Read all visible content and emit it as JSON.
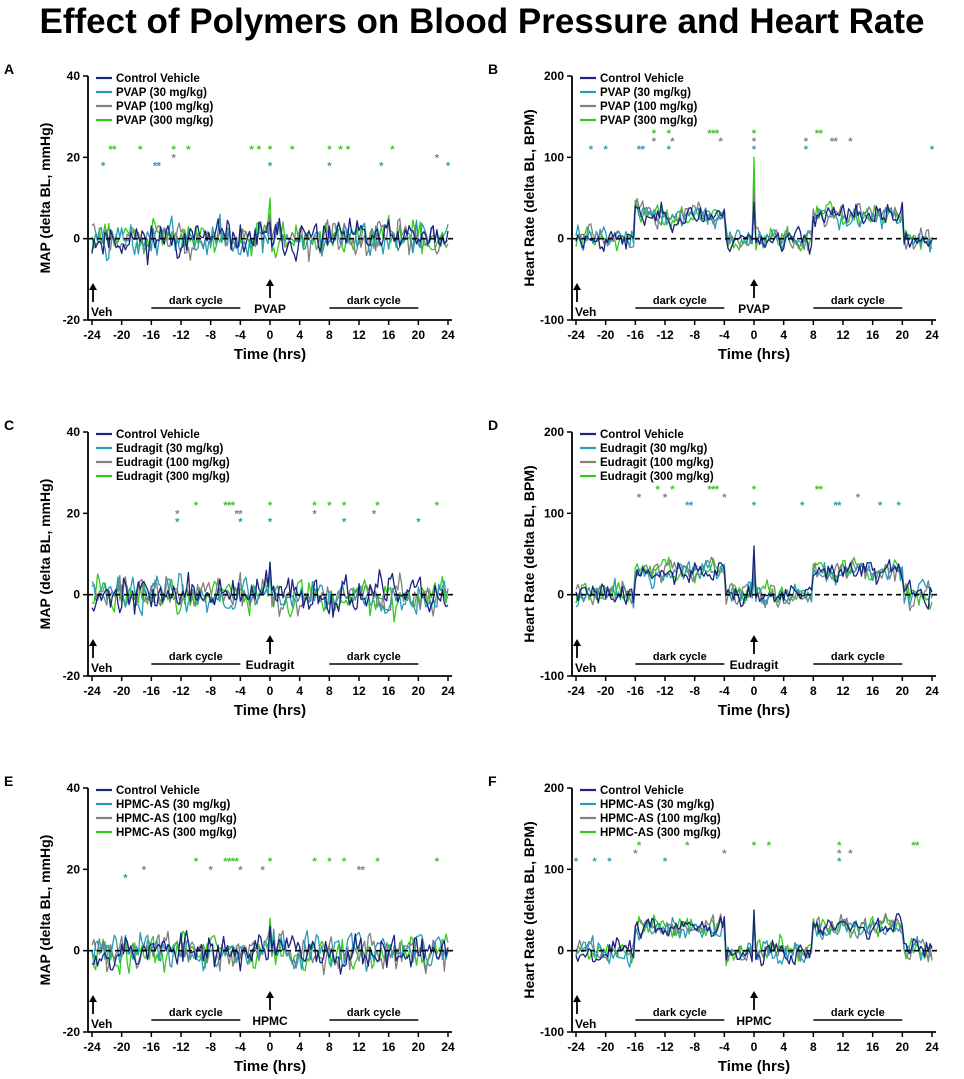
{
  "title": "Effect of Polymers on Blood Pressure and Heart Rate",
  "colors": {
    "control": "#1a237e",
    "low": "#2a9bb6",
    "mid": "#808080",
    "high": "#33cc1a"
  },
  "chart_data": [
    {
      "letter": "A",
      "type": "line",
      "measure": "MAP",
      "ylabel": "MAP (delta BL, mmHg)",
      "xlabel": "Time (hrs)",
      "ylim": [
        -20,
        40
      ],
      "yticks": [
        -20,
        0,
        20,
        40
      ],
      "xlim": [
        -24,
        24
      ],
      "xticks": [
        -24,
        -20,
        -16,
        -12,
        -8,
        -4,
        0,
        4,
        8,
        12,
        16,
        20,
        24
      ],
      "baseline": 0,
      "series": [
        {
          "name": "Control Vehicle",
          "color_key": "control"
        },
        {
          "name": "PVAP (30 mg/kg)",
          "color_key": "low"
        },
        {
          "name": "PVAP (100 mg/kg)",
          "color_key": "mid"
        },
        {
          "name": "PVAP (300 mg/kg)",
          "color_key": "high"
        }
      ],
      "trace_profile": {
        "night_shift": [
          0,
          0,
          0,
          0
        ],
        "spike_at_0": [
          4,
          4,
          6,
          10
        ],
        "noise": 5,
        "seed": 11
      },
      "veh_label": "Veh",
      "dose_label": "PVAP",
      "dark_label": "dark cycle",
      "dark_cycles": [
        [
          -16,
          -4
        ],
        [
          8,
          20
        ]
      ],
      "significance": [
        {
          "series": 1,
          "x": [
            -22.5,
            -15.5,
            -15,
            0,
            8,
            15,
            24
          ]
        },
        {
          "series": 2,
          "x": [
            -13,
            22.5
          ]
        },
        {
          "series": 3,
          "x": [
            -21.5,
            -21,
            -17.5,
            -13,
            -11,
            -2.5,
            -1.5,
            0,
            3,
            8,
            9.5,
            10.5,
            16.5
          ]
        }
      ],
      "sig_y": {
        "1": 18,
        "2": 20,
        "3": 22
      }
    },
    {
      "letter": "B",
      "type": "line",
      "measure": "HR",
      "ylabel": "Heart Rate (delta BL, BPM)",
      "xlabel": "Time (hrs)",
      "ylim": [
        -100,
        200
      ],
      "yticks": [
        -100,
        0,
        100,
        200
      ],
      "xlim": [
        -24,
        24
      ],
      "xticks": [
        -24,
        -20,
        -16,
        -12,
        -8,
        -4,
        0,
        4,
        8,
        12,
        16,
        20,
        24
      ],
      "baseline": 0,
      "series": [
        {
          "name": "Control Vehicle",
          "color_key": "control"
        },
        {
          "name": "PVAP (30 mg/kg)",
          "color_key": "low"
        },
        {
          "name": "PVAP (100 mg/kg)",
          "color_key": "mid"
        },
        {
          "name": "PVAP (300 mg/kg)",
          "color_key": "high"
        }
      ],
      "trace_profile": {
        "night_shift": [
          28,
          28,
          30,
          30
        ],
        "spike_at_0": [
          45,
          40,
          60,
          100
        ],
        "noise": 16,
        "seed": 23
      },
      "veh_label": "Veh",
      "dose_label": "PVAP",
      "dark_label": "dark cycle",
      "dark_cycles": [
        [
          -16,
          -4
        ],
        [
          8,
          20
        ]
      ],
      "significance": [
        {
          "series": 1,
          "x": [
            -22,
            -20,
            -15.5,
            -15,
            -11.5,
            0,
            7,
            24
          ]
        },
        {
          "series": 2,
          "x": [
            -13.5,
            -11,
            -4.5,
            0,
            7,
            10.5,
            11,
            13
          ]
        },
        {
          "series": 3,
          "x": [
            -13.5,
            -11.5,
            -6,
            -5.5,
            -5,
            0,
            8.5,
            9
          ]
        }
      ],
      "sig_y": {
        "1": 110,
        "2": 120,
        "3": 130
      }
    },
    {
      "letter": "C",
      "type": "line",
      "measure": "MAP",
      "ylabel": "MAP (delta BL, mmHg)",
      "xlabel": "Time (hrs)",
      "ylim": [
        -20,
        40
      ],
      "yticks": [
        -20,
        0,
        20,
        40
      ],
      "xlim": [
        -24,
        24
      ],
      "xticks": [
        -24,
        -20,
        -16,
        -12,
        -8,
        -4,
        0,
        4,
        8,
        12,
        16,
        20,
        24
      ],
      "baseline": 0,
      "series": [
        {
          "name": "Control Vehicle",
          "color_key": "control"
        },
        {
          "name": "Eudragit (30 mg/kg)",
          "color_key": "low"
        },
        {
          "name": "Eudragit (100 mg/kg)",
          "color_key": "mid"
        },
        {
          "name": "Eudragit (300 mg/kg)",
          "color_key": "high"
        }
      ],
      "trace_profile": {
        "night_shift": [
          0,
          0,
          0,
          0
        ],
        "spike_at_0": [
          8,
          6,
          6,
          8
        ],
        "noise": 5,
        "seed": 37
      },
      "veh_label": "Veh",
      "dose_label": "Eudragit",
      "dark_label": "dark cycle",
      "dark_cycles": [
        [
          -16,
          -4
        ],
        [
          8,
          20
        ]
      ],
      "significance": [
        {
          "series": 1,
          "x": [
            -12.5,
            -4,
            0,
            10,
            20
          ]
        },
        {
          "series": 2,
          "x": [
            -12.5,
            -4.5,
            -4,
            6,
            14
          ]
        },
        {
          "series": 3,
          "x": [
            -10,
            -6,
            -5.5,
            -5,
            0,
            6,
            8,
            10,
            14.5,
            22.5
          ]
        }
      ],
      "sig_y": {
        "1": 18,
        "2": 20,
        "3": 22
      }
    },
    {
      "letter": "D",
      "type": "line",
      "measure": "HR",
      "ylabel": "Heart Rate (delta BL, BPM)",
      "xlabel": "Time (hrs)",
      "ylim": [
        -100,
        200
      ],
      "yticks": [
        -100,
        0,
        100,
        200
      ],
      "xlim": [
        -24,
        24
      ],
      "xticks": [
        -24,
        -20,
        -16,
        -12,
        -8,
        -4,
        0,
        4,
        8,
        12,
        16,
        20,
        24
      ],
      "baseline": 0,
      "series": [
        {
          "name": "Control Vehicle",
          "color_key": "control"
        },
        {
          "name": "Eudragit (30 mg/kg)",
          "color_key": "low"
        },
        {
          "name": "Eudragit (100 mg/kg)",
          "color_key": "mid"
        },
        {
          "name": "Eudragit (300 mg/kg)",
          "color_key": "high"
        }
      ],
      "trace_profile": {
        "night_shift": [
          28,
          28,
          30,
          30
        ],
        "spike_at_0": [
          60,
          20,
          30,
          40
        ],
        "noise": 16,
        "seed": 41
      },
      "veh_label": "Veh",
      "dose_label": "Eudragit",
      "dark_label": "dark cycle",
      "dark_cycles": [
        [
          -16,
          -4
        ],
        [
          8,
          20
        ]
      ],
      "significance": [
        {
          "series": 1,
          "x": [
            -9,
            -8.5,
            0,
            6.5,
            11,
            11.5,
            17,
            19.5
          ]
        },
        {
          "series": 2,
          "x": [
            -15.5,
            -12,
            -4,
            14
          ]
        },
        {
          "series": 3,
          "x": [
            -13,
            -11,
            -6,
            -5.5,
            -5,
            0,
            8.5,
            9
          ]
        }
      ],
      "sig_y": {
        "1": 110,
        "2": 120,
        "3": 130
      }
    },
    {
      "letter": "E",
      "type": "line",
      "measure": "MAP",
      "ylabel": "MAP (delta BL, mmHg)",
      "xlabel": "Time (hrs)",
      "ylim": [
        -20,
        40
      ],
      "yticks": [
        -20,
        0,
        20,
        40
      ],
      "xlim": [
        -24,
        24
      ],
      "xticks": [
        -24,
        -20,
        -16,
        -12,
        -8,
        -4,
        0,
        4,
        8,
        12,
        16,
        20,
        24
      ],
      "baseline": 0,
      "series": [
        {
          "name": "Control Vehicle",
          "color_key": "control"
        },
        {
          "name": "HPMC-AS (30 mg/kg)",
          "color_key": "low"
        },
        {
          "name": "HPMC-AS (100 mg/kg)",
          "color_key": "mid"
        },
        {
          "name": "HPMC-AS (300 mg/kg)",
          "color_key": "high"
        }
      ],
      "trace_profile": {
        "night_shift": [
          0,
          0,
          0,
          0
        ],
        "spike_at_0": [
          6,
          4,
          6,
          8
        ],
        "noise": 5,
        "seed": 53
      },
      "veh_label": "Veh",
      "dose_label": "HPMC",
      "dark_label": "dark cycle",
      "dark_cycles": [
        [
          -16,
          -4
        ],
        [
          8,
          20
        ]
      ],
      "significance": [
        {
          "series": 1,
          "x": [
            -19.5
          ]
        },
        {
          "series": 2,
          "x": [
            -17,
            -8,
            -4,
            -1,
            12,
            12.5
          ]
        },
        {
          "series": 3,
          "x": [
            -10,
            -6,
            -5.5,
            -5,
            -4.5,
            0,
            6,
            8,
            10,
            14.5,
            22.5
          ]
        }
      ],
      "sig_y": {
        "1": 18,
        "2": 20,
        "3": 22
      }
    },
    {
      "letter": "F",
      "type": "line",
      "measure": "HR",
      "ylabel": "Heart Rate (delta BL, BPM)",
      "xlabel": "Time (hrs)",
      "ylim": [
        -100,
        200
      ],
      "yticks": [
        -100,
        0,
        100,
        200
      ],
      "xlim": [
        -24,
        24
      ],
      "xticks": [
        -24,
        -20,
        -16,
        -12,
        -8,
        -4,
        0,
        4,
        8,
        12,
        16,
        20,
        24
      ],
      "baseline": 0,
      "series": [
        {
          "name": "Control Vehicle",
          "color_key": "control"
        },
        {
          "name": "HPMC-AS (30 mg/kg)",
          "color_key": "low"
        },
        {
          "name": "HPMC-AS (100 mg/kg)",
          "color_key": "mid"
        },
        {
          "name": "HPMC-AS (300 mg/kg)",
          "color_key": "high"
        }
      ],
      "trace_profile": {
        "night_shift": [
          28,
          28,
          30,
          30
        ],
        "spike_at_0": [
          50,
          30,
          40,
          50
        ],
        "noise": 16,
        "seed": 67
      },
      "veh_label": "Veh",
      "dose_label": "HPMC",
      "dark_label": "dark cycle",
      "dark_cycles": [
        [
          -16,
          -4
        ],
        [
          8,
          20
        ]
      ],
      "significance": [
        {
          "series": 1,
          "x": [
            -24,
            -21.5,
            -19.5,
            -12,
            11.5
          ]
        },
        {
          "series": 2,
          "x": [
            -16,
            -4,
            11.5,
            13
          ]
        },
        {
          "series": 3,
          "x": [
            -15.5,
            -9,
            0,
            2,
            11.5,
            21.5,
            22
          ]
        }
      ],
      "sig_y": {
        "1": 110,
        "2": 120,
        "3": 130
      }
    }
  ]
}
